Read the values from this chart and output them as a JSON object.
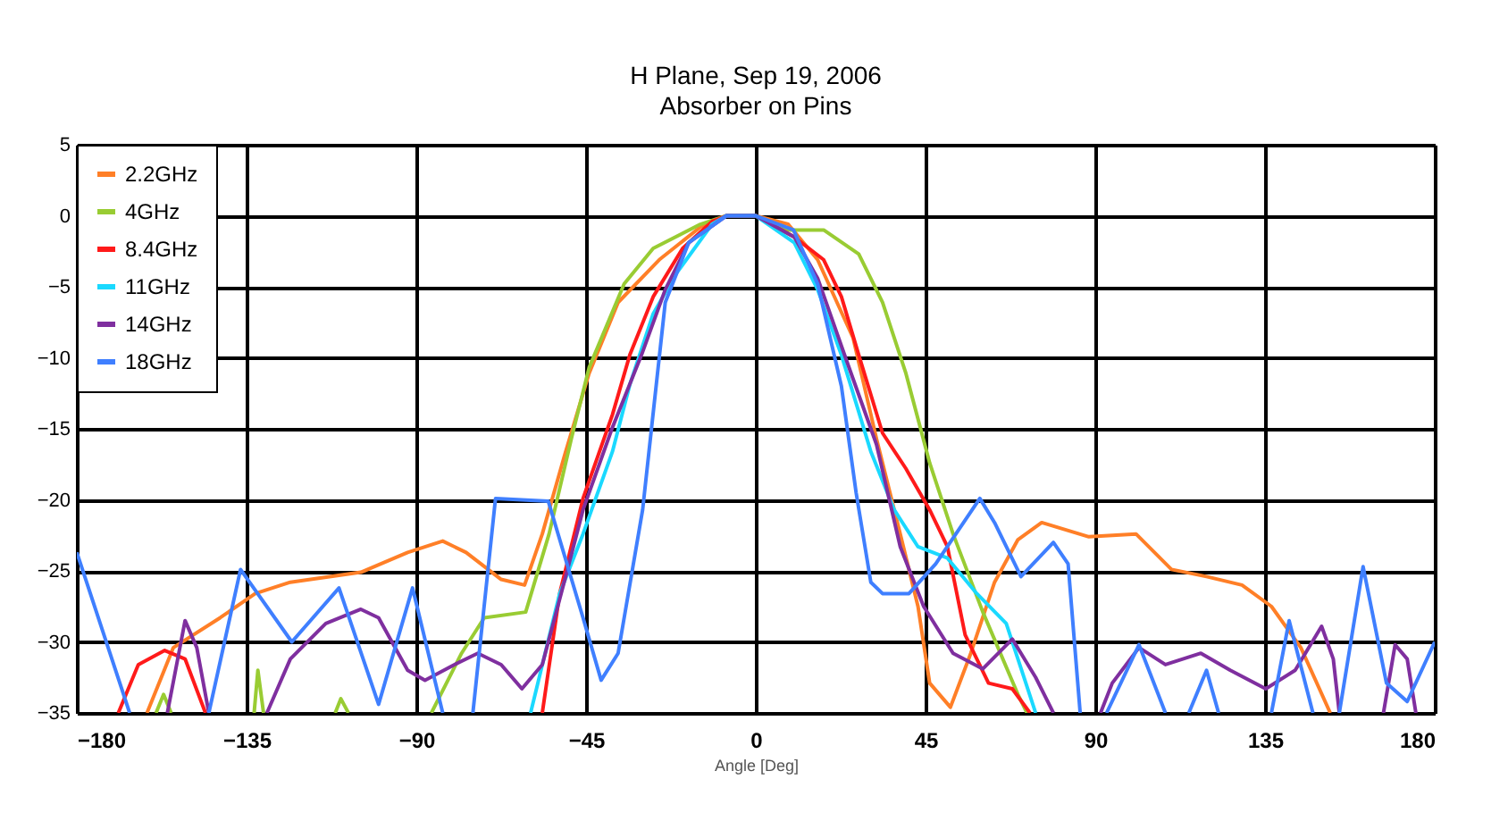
{
  "chart_data": {
    "type": "line",
    "title": "H Plane, Sep 19, 2006",
    "subtitle": "Absorber on Pins",
    "xlabel": "Angle [Deg]",
    "xlim": [
      -180,
      180
    ],
    "xticks": [
      -180,
      -135,
      -90,
      -45,
      0,
      45,
      90,
      135,
      180
    ],
    "ylim": [
      -35,
      5
    ],
    "yticks": [
      5,
      0,
      -5,
      -10,
      -15,
      -20,
      -25,
      -30,
      -35
    ],
    "grid": true,
    "legend": "top left",
    "marker": "none",
    "line_style": "solid",
    "series": [
      {
        "name": "2.2GHz",
        "color": "#ff7f27",
        "x": [
          -161.4,
          -154.4,
          -142,
          -132.7,
          -123.4,
          -104.7,
          -92.3,
          -83,
          -76.8,
          -67.5,
          -61.3,
          -56.6,
          -50.4,
          -44.2,
          -36.5,
          -25.6,
          -14.7,
          -7.8,
          0,
          8.6,
          16.4,
          25.8,
          32,
          38.3,
          43,
          46.1,
          51.6,
          57,
          63.3,
          69.5,
          75.8,
          88.3,
          100.8,
          110.2,
          119.5,
          128.9,
          136.7,
          144.5,
          152.3
        ],
        "values": [
          -35,
          -30.4,
          -28.3,
          -26.6,
          -25.8,
          -25.1,
          -23.7,
          -22.9,
          -23.7,
          -25.6,
          -26,
          -22.4,
          -16.6,
          -11.1,
          -6.1,
          -3.1,
          -0.8,
          0,
          0,
          -0.6,
          -3.1,
          -8.6,
          -15.7,
          -22.4,
          -27.5,
          -32.9,
          -34.6,
          -30.8,
          -25.8,
          -22.8,
          -21.6,
          -22.6,
          -22.4,
          -24.9,
          -25.4,
          -26,
          -27.5,
          -30.4,
          -35
        ]
      },
      {
        "name": "4GHz",
        "color": "#99cc33",
        "x": [
          -159,
          -157,
          -155,
          -144,
          -133,
          -132,
          -130.5,
          -120,
          -111.5,
          -110,
          -108,
          -97,
          -86,
          -78,
          -72,
          -61,
          -54.8,
          -48.9,
          -44.2,
          -34.9,
          -27.2,
          -14.7,
          -7.8,
          0,
          8.6,
          18,
          27.3,
          33.6,
          39.8,
          46.1,
          52.3,
          60.2,
          69.5,
          71.9
        ],
        "values": [
          -35,
          -33.7,
          -35,
          null,
          -35,
          -32,
          -35,
          null,
          -35,
          -34,
          -35,
          null,
          -35,
          -30.8,
          -28.3,
          -27.9,
          -22.4,
          -15.7,
          -10.7,
          -4.8,
          -2.3,
          -0.6,
          0,
          0,
          -1,
          -1,
          -2.7,
          -6.1,
          -11.1,
          -17.4,
          -22.4,
          -27.9,
          -33.7,
          -35
        ]
      },
      {
        "name": "8.4GHz",
        "color": "#ff1a1a",
        "x": [
          -169,
          -163.7,
          -156.7,
          -151.3,
          -145.9,
          -100,
          -56.6,
          -52,
          -45.8,
          -38,
          -33.4,
          -27.2,
          -19.4,
          -11.6,
          -7.8,
          0,
          10.2,
          18,
          22.7,
          27.3,
          33.6,
          39.8,
          46.1,
          50.8,
          55.5,
          61.7,
          68,
          72.7
        ],
        "values": [
          -35,
          -31.6,
          -30.6,
          -31.2,
          -35,
          null,
          -35,
          -26.6,
          -19.9,
          -14,
          -9.8,
          -5.7,
          -2.3,
          -0.4,
          0,
          0,
          -1.5,
          -3.1,
          -5.7,
          -9.8,
          -15.3,
          -17.8,
          -20.7,
          -23.3,
          -29.5,
          -32.9,
          -33.3,
          -35
        ]
      },
      {
        "name": "11GHz",
        "color": "#1ad9ff",
        "x": [
          -59.7,
          -52,
          -45.8,
          -38,
          -33.4,
          -27.2,
          -20.9,
          -11.6,
          -7.8,
          0,
          10.2,
          16.4,
          22.7,
          30.5,
          36.7,
          43,
          50.8,
          58.6,
          66.4,
          74.2
        ],
        "values": [
          -35,
          -26.6,
          -22.4,
          -16.6,
          -11.9,
          -6.9,
          -4,
          -0.6,
          0,
          0,
          -1.9,
          -5.2,
          -9.8,
          -16.6,
          -20.7,
          -23.3,
          -24.1,
          -26.6,
          -28.7,
          -35
        ]
      },
      {
        "name": "14GHz",
        "color": "#7f2f9f",
        "x": [
          -156,
          -151.3,
          -148.2,
          -145,
          -137,
          -129.6,
          -123.4,
          -114,
          -104.7,
          -100,
          -92.3,
          -87.7,
          -79.9,
          -73.7,
          -67.5,
          -62,
          -56.6,
          -50.4,
          -45.8,
          -38,
          -30.3,
          -24,
          -17.8,
          -7.8,
          0,
          10.2,
          16.4,
          24.2,
          32,
          38.3,
          44.5,
          52.3,
          60.2,
          68,
          74.2,
          78.9,
          85,
          91.4,
          94.5,
          101.6,
          108.6,
          118,
          125.8,
          135.2,
          143,
          150,
          153.1,
          154.7,
          160,
          166.4,
          169.5,
          172.7,
          175
        ],
        "values": [
          -35,
          -28.5,
          -30.4,
          -35,
          null,
          -35,
          -31.2,
          -28.7,
          -27.7,
          -28.3,
          -32,
          -32.7,
          -31.6,
          -30.8,
          -31.6,
          -33.3,
          -31.6,
          -25.4,
          -20.7,
          -14.9,
          -9.8,
          -5.2,
          -1.9,
          0,
          0,
          -1.5,
          -4.4,
          -10.3,
          -16.1,
          -23.3,
          -27.5,
          -30.8,
          -31.9,
          -29.8,
          -32.5,
          -35,
          null,
          -35,
          -32.9,
          -30.4,
          -31.6,
          -30.8,
          -32,
          -33.3,
          -32,
          -28.9,
          -31.2,
          -35,
          null,
          -35,
          -30.2,
          -31.2,
          -35
        ]
      },
      {
        "name": "18GHz",
        "color": "#3f7fff",
        "x": [
          -180,
          -166,
          -155,
          -145,
          -136.6,
          -123,
          -110.5,
          -100,
          -91,
          -83,
          -79,
          -75,
          -69,
          -55,
          -45.8,
          -41,
          -36.5,
          -30,
          -24,
          -17.8,
          -7.8,
          0,
          10,
          16.4,
          22.7,
          26.6,
          30.5,
          33.6,
          40.6,
          47.7,
          59.4,
          63.3,
          70.3,
          78.9,
          82.8,
          86,
          89.5,
          93,
          101.6,
          108.6,
          112,
          114.8,
          119.5,
          122.7,
          130,
          136.7,
          141.4,
          147.7,
          151,
          154.7,
          161,
          167.2,
          172.7,
          180
        ],
        "values": [
          -23.7,
          -35,
          null,
          -35,
          -24.9,
          -30,
          -26.2,
          -34.4,
          -26.2,
          -35,
          null,
          -35,
          -19.9,
          -20.1,
          -28.3,
          -32.7,
          -30.8,
          -20.7,
          -6.1,
          -1.9,
          0,
          0,
          -1,
          -4.8,
          -12,
          -19.5,
          -25.8,
          -26.6,
          -26.6,
          -24.5,
          -19.9,
          -21.6,
          -25.4,
          -23,
          -24.5,
          -35,
          null,
          -35,
          -30.2,
          -35,
          null,
          -35,
          -32,
          -35,
          null,
          -35,
          -28.5,
          -35,
          null,
          -35,
          -24.7,
          -32.9,
          -34.2,
          -30
        ]
      }
    ]
  }
}
